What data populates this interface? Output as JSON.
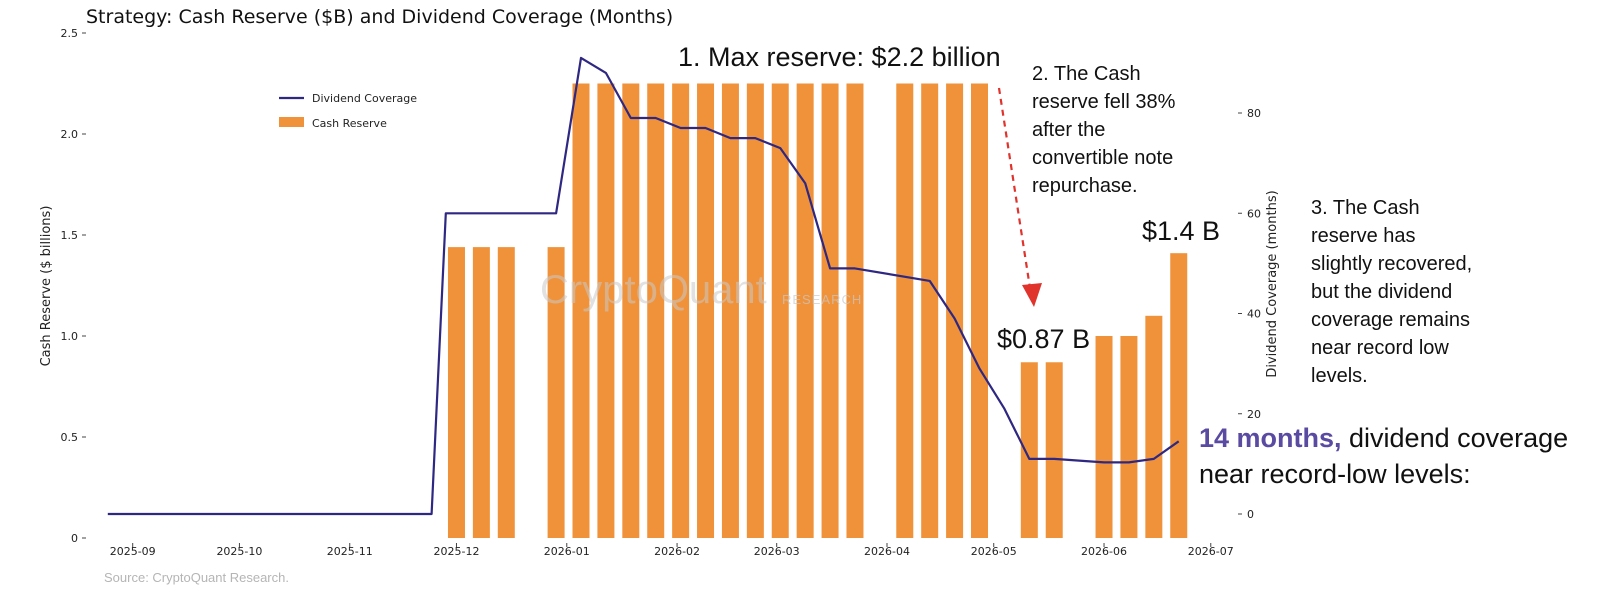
{
  "title": "Strategy: Cash Reserve ($B) and Dividend Coverage (Months)",
  "source": "Source: CryptoQuant Research.",
  "watermark": {
    "main": "CryptoQuant",
    "sub": "RESEARCH"
  },
  "colors": {
    "bar": "#f0923a",
    "line": "#2e2882",
    "highlight": "#5b4aa1",
    "arrow": "#e0332c"
  },
  "annotations": {
    "max_reserve": "1. Max reserve: $2.2 billion",
    "fell": "2. The Cash\nreserve fell 38%\nafter the\nconvertible note\nrepurchase.",
    "recovered": "3. The Cash\nreserve has\nslightly recovered,\nbut the dividend\ncoverage remains\nnear record low\nlevels.",
    "label_14b": "$1.4 B",
    "label_087b": "$0.87 B",
    "coverage_highlight": "14 months,",
    "coverage_rest": " dividend coverage",
    "coverage_line2": "near record-low levels:"
  },
  "chart_data": {
    "type": "bar",
    "title": "Strategy: Cash Reserve ($B) and Dividend Coverage (Months)",
    "x_axis": {
      "type": "date",
      "range": [
        "2025-08-20",
        "2026-07-05"
      ],
      "ticks": [
        "2025-09-01",
        "2025-10-01",
        "2025-11-01",
        "2025-12-01",
        "2026-01-01",
        "2026-02-01",
        "2026-03-01",
        "2026-04-01",
        "2026-05-01",
        "2026-06-01",
        "2026-07-01"
      ],
      "tick_labels": [
        "2025-09",
        "2025-10",
        "2025-11",
        "2025-12",
        "2026-01",
        "2026-02",
        "2026-03",
        "2026-04",
        "2026-05",
        "2026-06",
        "2026-07"
      ]
    },
    "y_left": {
      "label": "Cash Reserve ($ billions)",
      "range": [
        0,
        2.5
      ],
      "ticks": [
        0,
        0.5,
        1.0,
        1.5,
        2.0,
        2.5
      ],
      "tick_labels": [
        "0",
        "0.5",
        "1.0",
        "1.5",
        "2.0",
        "2.5"
      ]
    },
    "y_right": {
      "label": "Dividend Coverage (months)",
      "range": [
        -5,
        95
      ],
      "ticks": [
        0,
        20,
        40,
        60,
        80
      ],
      "tick_labels": [
        "0",
        "20",
        "40",
        "60",
        "80"
      ]
    },
    "grid": false,
    "legend": {
      "position": "upper-left",
      "entries": [
        "Dividend Coverage",
        "Cash Reserve"
      ]
    },
    "series": [
      {
        "name": "Cash Reserve",
        "type": "bar",
        "axis": "left",
        "points": [
          [
            "2025-12-01",
            1.44
          ],
          [
            "2025-12-08",
            1.44
          ],
          [
            "2025-12-15",
            1.44
          ],
          [
            "2025-12-29",
            1.44
          ],
          [
            "2026-01-05",
            2.25
          ],
          [
            "2026-01-12",
            2.25
          ],
          [
            "2026-01-19",
            2.25
          ],
          [
            "2026-01-26",
            2.25
          ],
          [
            "2026-02-02",
            2.25
          ],
          [
            "2026-02-09",
            2.25
          ],
          [
            "2026-02-16",
            2.25
          ],
          [
            "2026-02-23",
            2.25
          ],
          [
            "2026-03-02",
            2.25
          ],
          [
            "2026-03-09",
            2.25
          ],
          [
            "2026-03-16",
            2.25
          ],
          [
            "2026-03-23",
            2.25
          ],
          [
            "2026-04-06",
            2.25
          ],
          [
            "2026-04-13",
            2.25
          ],
          [
            "2026-04-20",
            2.25
          ],
          [
            "2026-04-27",
            2.25
          ],
          [
            "2026-05-11",
            0.87
          ],
          [
            "2026-05-18",
            0.87
          ],
          [
            "2026-06-01",
            1.0
          ],
          [
            "2026-06-08",
            1.0
          ],
          [
            "2026-06-15",
            1.1
          ],
          [
            "2026-06-22",
            1.41
          ]
        ]
      },
      {
        "name": "Dividend Coverage",
        "type": "line",
        "axis": "right",
        "points": [
          [
            "2025-08-25",
            0
          ],
          [
            "2025-11-24",
            0
          ],
          [
            "2025-11-28",
            60
          ],
          [
            "2025-12-29",
            60
          ],
          [
            "2026-01-05",
            91
          ],
          [
            "2026-01-12",
            88
          ],
          [
            "2026-01-19",
            79
          ],
          [
            "2026-01-26",
            79
          ],
          [
            "2026-02-02",
            77
          ],
          [
            "2026-02-09",
            77
          ],
          [
            "2026-02-16",
            75
          ],
          [
            "2026-02-23",
            75
          ],
          [
            "2026-03-02",
            73
          ],
          [
            "2026-03-09",
            66
          ],
          [
            "2026-03-16",
            49
          ],
          [
            "2026-03-23",
            49
          ],
          [
            "2026-04-13",
            46.5
          ],
          [
            "2026-04-20",
            39
          ],
          [
            "2026-04-27",
            29
          ],
          [
            "2026-05-04",
            21
          ],
          [
            "2026-05-11",
            11
          ],
          [
            "2026-05-18",
            11
          ],
          [
            "2026-06-01",
            10.3
          ],
          [
            "2026-06-08",
            10.3
          ],
          [
            "2026-06-15",
            11
          ],
          [
            "2026-06-22",
            14.5
          ]
        ]
      }
    ]
  }
}
